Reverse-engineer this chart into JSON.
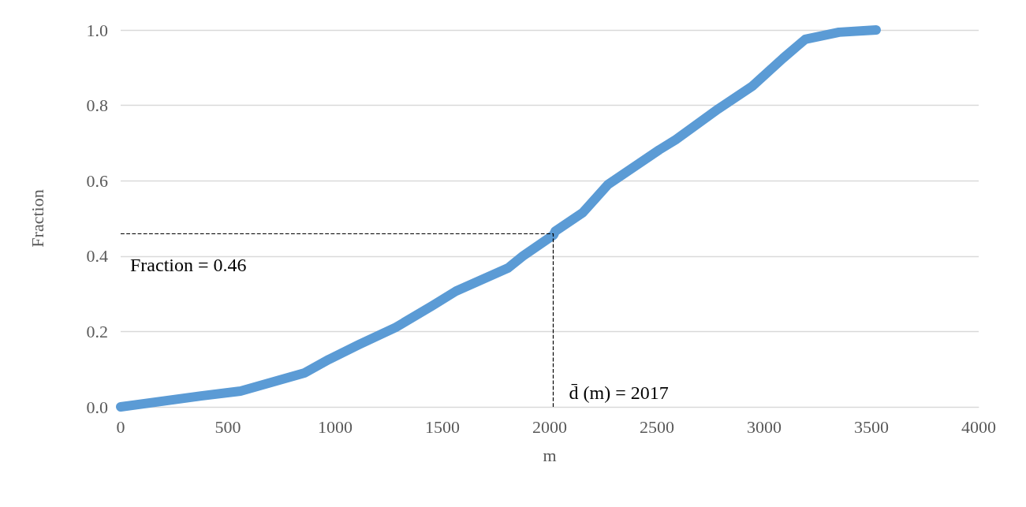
{
  "chart_data": {
    "type": "line",
    "xlabel": "m",
    "ylabel": "Fraction",
    "series": [
      {
        "color": "#5b9bd5",
        "x": [
          0,
          375,
          559,
          857,
          971,
          1110,
          1283,
          1452,
          1563,
          1805,
          1875,
          2018,
          2026,
          2154,
          2272,
          2511,
          2588,
          2787,
          2945,
          3088,
          3191,
          3349,
          3522
        ],
        "values": [
          0,
          0.029,
          0.042,
          0.09,
          0.126,
          0.165,
          0.211,
          0.268,
          0.307,
          0.368,
          0.4,
          0.456,
          0.466,
          0.515,
          0.59,
          0.682,
          0.709,
          0.791,
          0.851,
          0.925,
          0.975,
          0.994,
          1.0
        ]
      }
    ],
    "xlim": [
      0,
      4000
    ],
    "xticks": [
      0,
      500,
      1000,
      1500,
      2000,
      2500,
      3000,
      3500,
      4000
    ],
    "ylim": [
      0,
      1
    ],
    "yticks": [
      {
        "value": 0,
        "label": "0.0"
      },
      {
        "value": 0.2,
        "label": "0.2"
      },
      {
        "value": 0.4,
        "label": "0.4"
      },
      {
        "value": 0.6,
        "label": "0.6"
      },
      {
        "value": 0.8,
        "label": "0.8"
      },
      {
        "value": 1,
        "label": "1.0"
      }
    ],
    "ref_lines": [
      {
        "axis": "y",
        "value": 0.46,
        "label": "Fraction = 0.46",
        "color": "#000000",
        "line_style": "dashed"
      },
      {
        "axis": "x",
        "value": 2017,
        "label": "d̄ (m) = 2017",
        "color": "#000000",
        "line_style": "dashed"
      }
    ],
    "grid": "y",
    "line_style": "solid"
  }
}
